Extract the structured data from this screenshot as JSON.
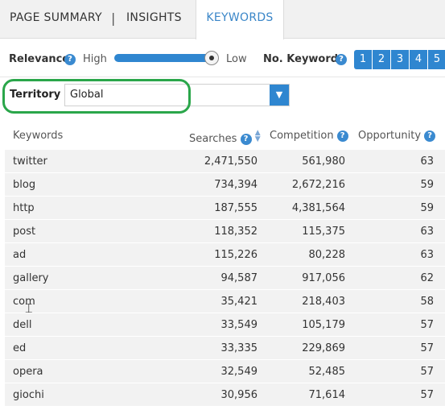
{
  "tabs": [
    {
      "label": "PAGE SUMMARY"
    },
    {
      "label": "INSIGHTS"
    },
    {
      "label": "KEYWORDS"
    }
  ],
  "tab_separator": "|",
  "relevance": {
    "label": "Relevance",
    "high": "High",
    "low": "Low",
    "value": 1.0
  },
  "no_keywords": {
    "label": "No. Keywords",
    "pages": [
      "1",
      "2",
      "3",
      "4",
      "5"
    ]
  },
  "territory": {
    "label": "Territory",
    "value": "Global"
  },
  "table": {
    "headers": {
      "keywords": "Keywords",
      "searches": "Searches",
      "competition": "Competition",
      "opportunity": "Opportunity"
    },
    "rows": [
      {
        "keyword": "twitter",
        "searches": "2,471,550",
        "competition": "561,980",
        "opportunity": "63"
      },
      {
        "keyword": "blog",
        "searches": "734,394",
        "competition": "2,672,216",
        "opportunity": "59"
      },
      {
        "keyword": "http",
        "searches": "187,555",
        "competition": "4,381,564",
        "opportunity": "59"
      },
      {
        "keyword": "post",
        "searches": "118,352",
        "competition": "115,375",
        "opportunity": "63"
      },
      {
        "keyword": "ad",
        "searches": "115,226",
        "competition": "80,228",
        "opportunity": "63"
      },
      {
        "keyword": "gallery",
        "searches": "94,587",
        "competition": "917,056",
        "opportunity": "62"
      },
      {
        "keyword": "com",
        "searches": "35,421",
        "competition": "218,403",
        "opportunity": "58"
      },
      {
        "keyword": "dell",
        "searches": "33,549",
        "competition": "105,179",
        "opportunity": "57"
      },
      {
        "keyword": "ed",
        "searches": "33,335",
        "competition": "229,869",
        "opportunity": "57"
      },
      {
        "keyword": "opera",
        "searches": "32,549",
        "competition": "52,485",
        "opportunity": "57"
      },
      {
        "keyword": "giochi",
        "searches": "30,956",
        "competition": "71,614",
        "opportunity": "57"
      }
    ]
  },
  "colors": {
    "accent": "#2f86d0",
    "highlight": "#2aa64a",
    "row_bg": "#f2f2f2"
  }
}
